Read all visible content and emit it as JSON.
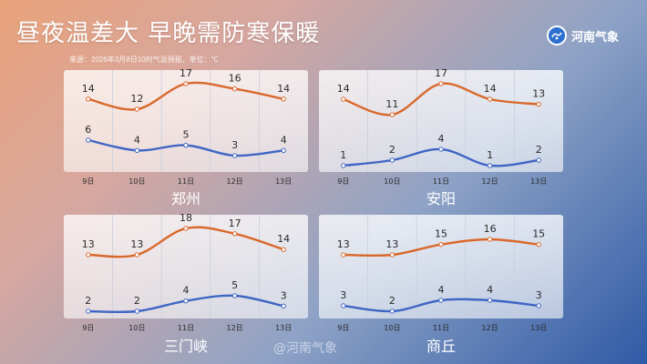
{
  "header": {
    "title": "昼夜温差大 早晚需防寒保暖",
    "source_note": "来源：2026年3月8日10时气温预报，单位：℃",
    "logo_text": "河南气象",
    "logo_icon": "weather-bureau-logo-icon"
  },
  "watermark": "@河南气象",
  "colors": {
    "high_line": "#d9672a",
    "low_line": "#3f66c4",
    "panel_text": "#2a2a2a",
    "city_label": "#ffffff"
  },
  "chart_data": [
    {
      "type": "line",
      "title": "郑州",
      "categories": [
        "9日",
        "10日",
        "11日",
        "12日",
        "13日"
      ],
      "series": [
        {
          "values": [
            14,
            12,
            17,
            16,
            14
          ]
        },
        {
          "values": [
            6,
            4,
            5,
            3,
            4
          ]
        }
      ],
      "grid": "vertical"
    },
    {
      "type": "line",
      "title": "安阳",
      "categories": [
        "9日",
        "10日",
        "11日",
        "12日",
        "13日"
      ],
      "series": [
        {
          "values": [
            14,
            11,
            17,
            14,
            13
          ]
        },
        {
          "values": [
            1,
            2,
            4,
            1,
            2
          ]
        }
      ],
      "grid": "vertical"
    },
    {
      "type": "line",
      "title": "三门峡",
      "categories": [
        "9日",
        "10日",
        "11日",
        "12日",
        "13日"
      ],
      "series": [
        {
          "values": [
            13,
            13,
            18,
            17,
            14
          ]
        },
        {
          "values": [
            2,
            2,
            4,
            5,
            3
          ]
        }
      ],
      "grid": "vertical"
    },
    {
      "type": "line",
      "title": "商丘",
      "categories": [
        "9日",
        "10日",
        "11日",
        "12日",
        "13日"
      ],
      "series": [
        {
          "values": [
            13,
            13,
            15,
            16,
            15
          ]
        },
        {
          "values": [
            3,
            2,
            4,
            4,
            3
          ]
        }
      ],
      "grid": "vertical"
    }
  ]
}
